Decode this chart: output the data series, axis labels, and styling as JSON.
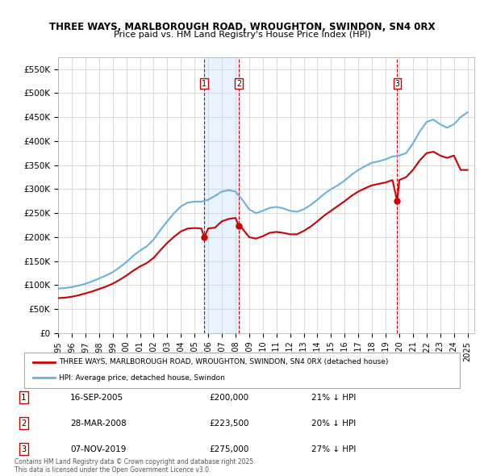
{
  "title1": "THREE WAYS, MARLBOROUGH ROAD, WROUGHTON, SWINDON, SN4 0RX",
  "title2": "Price paid vs. HM Land Registry's House Price Index (HPI)",
  "ylabel": "",
  "ylim": [
    0,
    575000
  ],
  "yticks": [
    0,
    50000,
    100000,
    150000,
    200000,
    250000,
    300000,
    350000,
    400000,
    450000,
    500000,
    550000
  ],
  "ytick_labels": [
    "£0",
    "£50K",
    "£100K",
    "£150K",
    "£200K",
    "£250K",
    "£300K",
    "£350K",
    "£400K",
    "£450K",
    "£500K",
    "£550K"
  ],
  "hpi_color": "#6ab0e0",
  "price_color": "#cc0000",
  "sale_color": "#cc0000",
  "vline_color": "#cc0000",
  "shade_color": "#ddeeff",
  "transaction1": {
    "date": 2005.71,
    "price": 200000,
    "label": "1"
  },
  "transaction2": {
    "date": 2008.24,
    "price": 223500,
    "label": "2"
  },
  "transaction3": {
    "date": 2019.85,
    "price": 275000,
    "label": "3"
  },
  "legend_property": "THREE WAYS, MARLBOROUGH ROAD, WROUGHTON, SWINDON, SN4 0RX (detached house)",
  "legend_hpi": "HPI: Average price, detached house, Swindon",
  "table": [
    {
      "num": "1",
      "date": "16-SEP-2005",
      "price": "£200,000",
      "change": "21% ↓ HPI"
    },
    {
      "num": "2",
      "date": "28-MAR-2008",
      "price": "£223,500",
      "change": "20% ↓ HPI"
    },
    {
      "num": "3",
      "date": "07-NOV-2019",
      "price": "£275,000",
      "change": "27% ↓ HPI"
    }
  ],
  "footnote": "Contains HM Land Registry data © Crown copyright and database right 2025.\nThis data is licensed under the Open Government Licence v3.0.",
  "hpi_data_x": [
    1995.0,
    1995.5,
    1996.0,
    1996.5,
    1997.0,
    1997.5,
    1998.0,
    1998.5,
    1999.0,
    1999.5,
    2000.0,
    2000.5,
    2001.0,
    2001.5,
    2002.0,
    2002.5,
    2003.0,
    2003.5,
    2004.0,
    2004.5,
    2005.0,
    2005.5,
    2006.0,
    2006.5,
    2007.0,
    2007.5,
    2008.0,
    2008.5,
    2009.0,
    2009.5,
    2010.0,
    2010.5,
    2011.0,
    2011.5,
    2012.0,
    2012.5,
    2013.0,
    2013.5,
    2014.0,
    2014.5,
    2015.0,
    2015.5,
    2016.0,
    2016.5,
    2017.0,
    2017.5,
    2018.0,
    2018.5,
    2019.0,
    2019.5,
    2020.0,
    2020.5,
    2021.0,
    2021.5,
    2022.0,
    2022.5,
    2023.0,
    2023.5,
    2024.0,
    2024.5,
    2025.0
  ],
  "hpi_data_y": [
    93000,
    94000,
    96000,
    99000,
    103000,
    108000,
    114000,
    120000,
    127000,
    137000,
    148000,
    161000,
    172000,
    181000,
    195000,
    215000,
    233000,
    250000,
    264000,
    272000,
    274000,
    274000,
    278000,
    286000,
    295000,
    298000,
    295000,
    278000,
    258000,
    250000,
    255000,
    261000,
    263000,
    260000,
    255000,
    253000,
    258000,
    267000,
    278000,
    290000,
    300000,
    308000,
    318000,
    330000,
    340000,
    348000,
    355000,
    358000,
    362000,
    368000,
    370000,
    375000,
    395000,
    420000,
    440000,
    445000,
    435000,
    428000,
    435000,
    450000,
    460000
  ],
  "price_data_x": [
    1995.0,
    1995.5,
    1996.0,
    1996.5,
    1997.0,
    1997.5,
    1998.0,
    1998.5,
    1999.0,
    1999.5,
    2000.0,
    2000.5,
    2001.0,
    2001.5,
    2002.0,
    2002.5,
    2003.0,
    2003.5,
    2004.0,
    2004.5,
    2005.0,
    2005.5,
    2005.71,
    2006.0,
    2006.5,
    2007.0,
    2007.5,
    2008.0,
    2008.24,
    2008.5,
    2009.0,
    2009.5,
    2010.0,
    2010.5,
    2011.0,
    2011.5,
    2012.0,
    2012.5,
    2013.0,
    2013.5,
    2014.0,
    2014.5,
    2015.0,
    2015.5,
    2016.0,
    2016.5,
    2017.0,
    2017.5,
    2018.0,
    2018.5,
    2019.0,
    2019.5,
    2019.85,
    2020.0,
    2020.5,
    2021.0,
    2021.5,
    2022.0,
    2022.5,
    2023.0,
    2023.5,
    2024.0,
    2024.5,
    2025.0
  ],
  "price_data_y": [
    73000,
    74000,
    76000,
    79000,
    83000,
    87000,
    92000,
    97000,
    103000,
    111000,
    120000,
    130000,
    139000,
    146000,
    157000,
    173000,
    188000,
    201000,
    212000,
    218000,
    219000,
    218000,
    200000,
    218000,
    220000,
    233000,
    238000,
    240000,
    223500,
    218000,
    200000,
    197000,
    202000,
    209000,
    211000,
    209000,
    206000,
    206000,
    213000,
    222000,
    233000,
    245000,
    255000,
    265000,
    275000,
    286000,
    295000,
    302000,
    308000,
    311000,
    314000,
    319000,
    275000,
    319000,
    325000,
    340000,
    360000,
    375000,
    378000,
    370000,
    365000,
    370000,
    340000,
    340000
  ]
}
